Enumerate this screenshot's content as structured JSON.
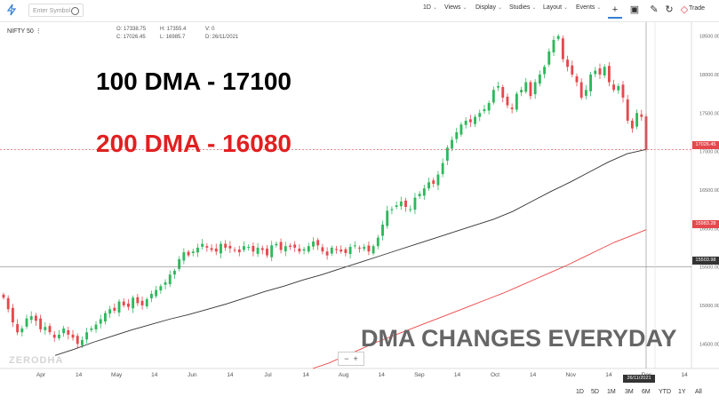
{
  "toolbar": {
    "search_placeholder": "Enter Symbol",
    "interval": "1D",
    "views": "Views",
    "display": "Display",
    "studies": "Studies",
    "layout": "Layout",
    "events": "Events",
    "trade": "Trade"
  },
  "symbol": "NIFTY 50",
  "ohlc": {
    "open_label": "O:",
    "open": "17338.75",
    "high_label": "H:",
    "high": "17355.4",
    "close_label": "C:",
    "close": "17026.45",
    "low_label": "L:",
    "low": "16985.7",
    "volume_label": "V:",
    "volume": "0",
    "date_label": "D:",
    "date": "26/11/2021"
  },
  "annotations": {
    "dma100": "100 DMA - 17100",
    "dma200": "200 DMA - 16080",
    "note": "DMA CHANGES EVERYDAY"
  },
  "watermark": "ZERODHA",
  "price_labels": {
    "last": "17026.45",
    "ma200": "15983.28",
    "cross": "15503.98",
    "date_cursor": "26/11/2021"
  },
  "range_buttons": [
    "1D",
    "5D",
    "1M",
    "3M",
    "6M",
    "YTD",
    "1Y",
    "All"
  ],
  "colors": {
    "up": "#2eb85c",
    "down": "#e5484d",
    "ma100": "#333333",
    "ma200": "#ef4444",
    "ann_red": "#e02020"
  },
  "chart_data": {
    "type": "candlestick",
    "y_ticks": [
      14500,
      15000,
      15500,
      16000,
      16500,
      17000,
      17500,
      18000,
      18500
    ],
    "y_tick_labels": [
      "14500.00",
      "15000.00",
      "15500.00",
      "16000.00",
      "16500.00",
      "17000.00",
      "17500.00",
      "18000.00",
      "18500.00"
    ],
    "ylim": [
      14180,
      18680
    ],
    "x_ticks": [
      "Apr",
      "14",
      "May",
      "14",
      "Jun",
      "14",
      "Jul",
      "14",
      "Aug",
      "14",
      "Sep",
      "14",
      "Oct",
      "14",
      "Nov",
      "14",
      "Dec",
      "14"
    ],
    "closes": [
      15100,
      14950,
      14780,
      14650,
      14700,
      14830,
      14860,
      14800,
      14690,
      14720,
      14650,
      14580,
      14620,
      14700,
      14620,
      14580,
      14500,
      14550,
      14650,
      14700,
      14750,
      14820,
      14900,
      14950,
      14930,
      15050,
      15000,
      14980,
      15100,
      15030,
      15000,
      15080,
      15150,
      15200,
      15250,
      15300,
      15400,
      15450,
      15600,
      15690,
      15650,
      15700,
      15750,
      15800,
      15750,
      15720,
      15700,
      15800,
      15750,
      15740,
      15720,
      15690,
      15770,
      15760,
      15700,
      15750,
      15720,
      15650,
      15780,
      15800,
      15720,
      15770,
      15760,
      15750,
      15700,
      15730,
      15770,
      15830,
      15780,
      15700,
      15650,
      15750,
      15720,
      15700,
      15680,
      15760,
      15780,
      15740,
      15760,
      15700,
      15770,
      15880,
      16050,
      16230,
      16250,
      16300,
      16350,
      16280,
      16250,
      16400,
      16450,
      16520,
      16600,
      16580,
      16700,
      16850,
      17050,
      17150,
      17250,
      17350,
      17400,
      17380,
      17450,
      17500,
      17550,
      17630,
      17800,
      17850,
      17700,
      17600,
      17550,
      17750,
      17800,
      17900,
      17720,
      17900,
      18000,
      18100,
      18300,
      18450,
      18500,
      18200,
      18100,
      18000,
      17900,
      17700,
      17800,
      18000,
      18050,
      18000,
      18100,
      17900,
      17800,
      17850,
      17700,
      17400,
      17300,
      17500,
      17450,
      17026
    ],
    "series": [
      {
        "name": "100 DMA",
        "values": [
          14350,
          14430,
          14520,
          14600,
          14680,
          14750,
          14820,
          14880,
          14950,
          15020,
          15100,
          15180,
          15250,
          15330,
          15400,
          15480,
          15560,
          15640,
          15720,
          15800,
          15880,
          15960,
          16040,
          16120,
          16220,
          16350,
          16480,
          16600,
          16730,
          16860,
          16970,
          17026
        ]
      },
      {
        "name": "200 DMA",
        "values": [
          14180,
          14250,
          14340,
          14430,
          14520,
          14600,
          14680,
          14760,
          14840,
          14920,
          15000,
          15080,
          15160,
          15250,
          15340,
          15430,
          15520,
          15620,
          15720,
          15820,
          15900,
          15983
        ]
      }
    ]
  }
}
